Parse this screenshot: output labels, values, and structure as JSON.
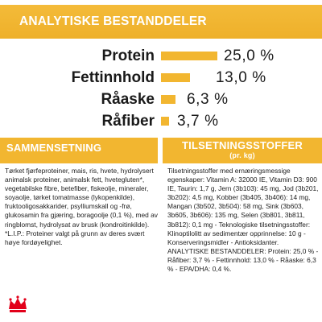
{
  "header": {
    "title": "ANALYTISKE BESTANDDELER"
  },
  "analysis": [
    {
      "label": "Protein",
      "value": "25,0 %",
      "percent": 25.0
    },
    {
      "label": "Fettinnhold",
      "value": "13,0 %",
      "percent": 13.0
    },
    {
      "label": "Råaske",
      "value": "6,3 %",
      "percent": 6.3
    },
    {
      "label": "Råfiber",
      "value": "3,7 %",
      "percent": 3.7
    }
  ],
  "composition": {
    "title": "SAMMENSETNING",
    "text": "Tørket fjørfeproteiner, mais, ris, hvete, hydrolysert animalsk proteiner, animalsk fett, hvetegluten*, vegetabilske fibre, betefiber, fiskeolje, mineraler, soyaolje, tørket tomatmasse (lykopenkilde), fruktooligosakkarider, psylliumskall og -frø, glukosamin fra gjæring, boragoolje (0,1 %), med av ringblomst, hydrolysat av brusk (kondroitinkilde). *L.I.P.: Proteiner valgt på grunn av deres svært høye fordøyelighet."
  },
  "additives": {
    "title": "TILSETNINGSSTOFFER",
    "subtitle": "(pr. kg)",
    "text": "Tilsetningsstoffer med ernæringsmessige egenskaper: Vitamin A: 32000 IE, Vitamin D3: 900 IE, Taurin: 1,7 g, Jern (3b103): 45 mg, Jod (3b201, 3b202): 4,5 mg, Kobber (3b405, 3b406): 14 mg, Mangan (3b502, 3b504): 58 mg, Sink (3b603, 3b605, 3b606): 135 mg, Selen (3b801, 3b811, 3b812): 0,1 mg - Teknologiske tilsetningsstoffer: Klinoptilolitt av sedimentær opprinnelse: 10 g - Konserveringsmidler - Antioksidanter. ANALYTISKE BESTANDDELER: Protein: 25,0 % - Råfiber: 3,7 % - Fettinnhold: 13,0 % - Råaske: 6,3 % - EPA/DHA: 0,4 %."
  },
  "colors": {
    "accent": "#f2b630",
    "text": "#1a1a1a",
    "logo": "#e2001a"
  },
  "logo": {
    "icon": "crown-icon"
  }
}
